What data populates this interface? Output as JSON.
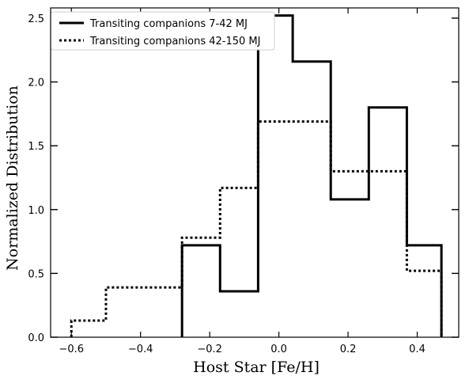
{
  "chart_data": {
    "type": "histogram-step",
    "xlabel": "Host Star [Fe/H]",
    "ylabel": "Normalized Distribution",
    "xlim": [
      -0.66,
      0.52
    ],
    "ylim": [
      0,
      2.58
    ],
    "xticks": [
      -0.6,
      -0.4,
      -0.2,
      0.0,
      0.2,
      0.4
    ],
    "xtick_labels": [
      "−0.6",
      "−0.4",
      "−0.2",
      "0.0",
      "0.2",
      "0.4"
    ],
    "yticks": [
      0.0,
      0.5,
      1.0,
      1.5,
      2.0,
      2.5
    ],
    "ytick_labels": [
      "0.0",
      "0.5",
      "1.0",
      "1.5",
      "2.0",
      "2.5"
    ],
    "legend_position": "top-left",
    "series": [
      {
        "name": "Transiting companions 7-42 MJ",
        "style": "solid",
        "bin_edges": [
          -0.28,
          -0.17,
          -0.06,
          0.04,
          0.15,
          0.26,
          0.37,
          0.47
        ],
        "values": [
          0.72,
          0.36,
          2.52,
          2.16,
          1.08,
          1.8,
          0.72
        ]
      },
      {
        "name": "Transiting companions 42-150 MJ",
        "style": "dotted",
        "bin_edges": [
          -0.6,
          -0.5,
          -0.39,
          -0.28,
          -0.17,
          -0.06,
          0.15,
          0.37,
          0.47
        ],
        "values": [
          0.13,
          0.39,
          0.39,
          0.78,
          1.17,
          1.69,
          1.3,
          0.52
        ]
      }
    ]
  }
}
